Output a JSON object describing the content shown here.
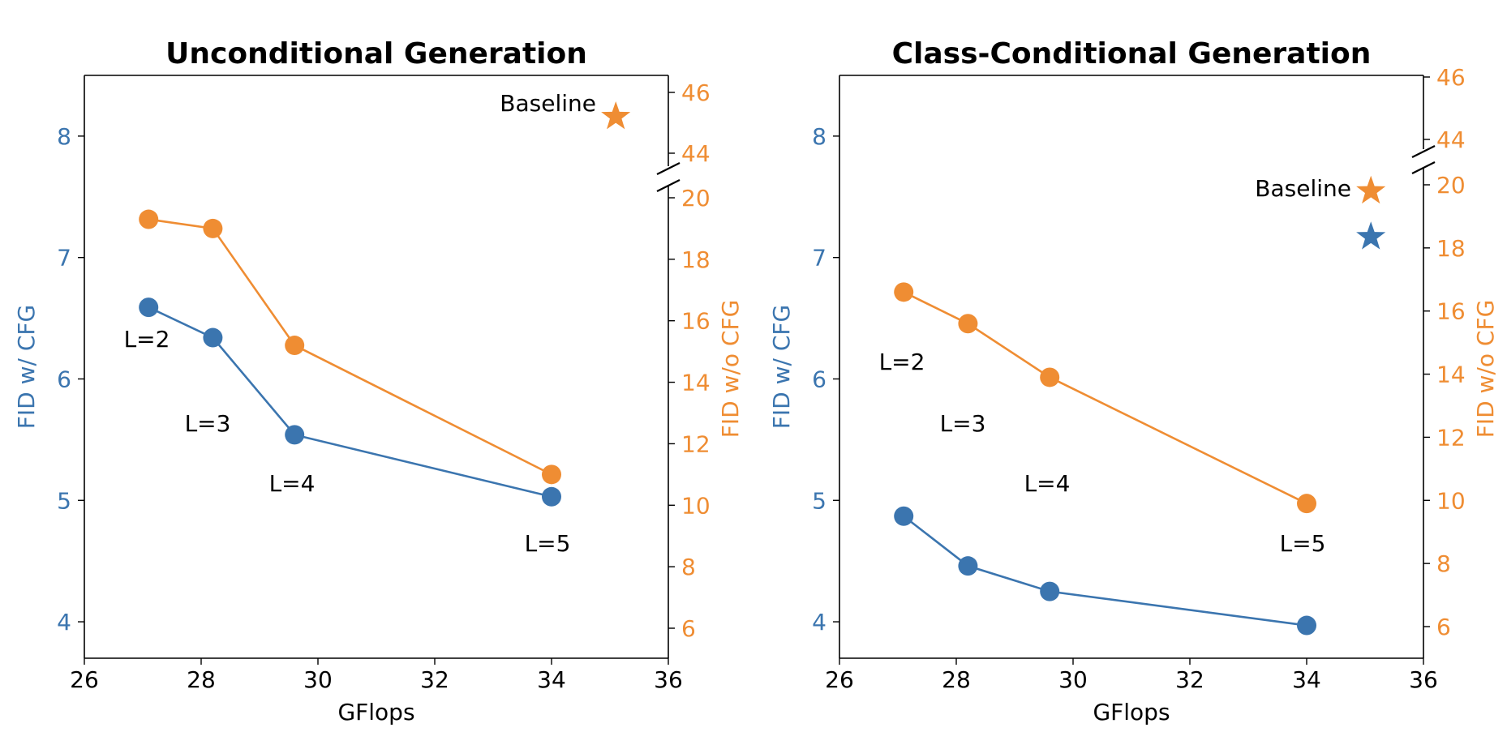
{
  "colors": {
    "blue": "#3b75af",
    "orange": "#ef8d33",
    "axis": "#000000"
  },
  "chart_data": [
    {
      "type": "line",
      "title": "Unconditional Generation",
      "xlabel": "GFlops",
      "ylabel_left": "FID w/ CFG",
      "ylabel_right": "FID w/o CFG",
      "xlim": [
        26,
        36
      ],
      "xticks": [
        "26",
        "28",
        "30",
        "32",
        "34",
        "36"
      ],
      "ylim_left": [
        3.7,
        8.5
      ],
      "yticks_left": [
        "4",
        "5",
        "6",
        "7",
        "8"
      ],
      "ylim_right": [
        5,
        46.5
      ],
      "yticks_right": [
        "6",
        "8",
        "10",
        "12",
        "14",
        "16",
        "18",
        "20",
        "44",
        "46"
      ],
      "right_axis_break": {
        "below": 20,
        "above": 44
      },
      "x": [
        27.1,
        28.2,
        29.6,
        34.0
      ],
      "point_labels": [
        "L=2",
        "L=3",
        "L=4",
        "L=5"
      ],
      "series": [
        {
          "axis": "left",
          "color": "blue",
          "values": [
            6.59,
            6.34,
            5.54,
            5.03
          ]
        },
        {
          "axis": "right",
          "color": "orange",
          "values": [
            19.3,
            19.0,
            15.2,
            11.0
          ]
        }
      ],
      "baseline": {
        "label": "Baseline",
        "x": 35.1,
        "orange": 45.2,
        "blue": null
      },
      "grid": false,
      "legend": "none"
    },
    {
      "type": "line",
      "title": "Class-Conditional Generation",
      "xlabel": "GFlops",
      "ylabel_left": "FID w/ CFG",
      "ylabel_right": "FID w/o CFG",
      "xlim": [
        26,
        36
      ],
      "xticks": [
        "26",
        "28",
        "30",
        "32",
        "34",
        "36"
      ],
      "ylim_left": [
        3.7,
        8.5
      ],
      "yticks_left": [
        "4",
        "5",
        "6",
        "7",
        "8"
      ],
      "ylim_right": [
        5,
        46.5
      ],
      "yticks_right": [
        "6",
        "8",
        "10",
        "12",
        "14",
        "16",
        "18",
        "20",
        "44",
        "46"
      ],
      "right_axis_break": {
        "below": 20,
        "above": 44
      },
      "x": [
        27.1,
        28.2,
        29.6,
        34.0
      ],
      "point_labels": [
        "L=2",
        "L=3",
        "L=4",
        "L=5"
      ],
      "series": [
        {
          "axis": "left",
          "color": "blue",
          "values": [
            4.87,
            4.46,
            4.25,
            3.97
          ]
        },
        {
          "axis": "right",
          "color": "orange",
          "values": [
            16.6,
            15.6,
            13.9,
            9.9
          ]
        }
      ],
      "baseline": {
        "label": "Baseline",
        "x": 35.1,
        "orange": 19.8,
        "blue": 7.17
      },
      "grid": false,
      "legend": "none"
    }
  ]
}
